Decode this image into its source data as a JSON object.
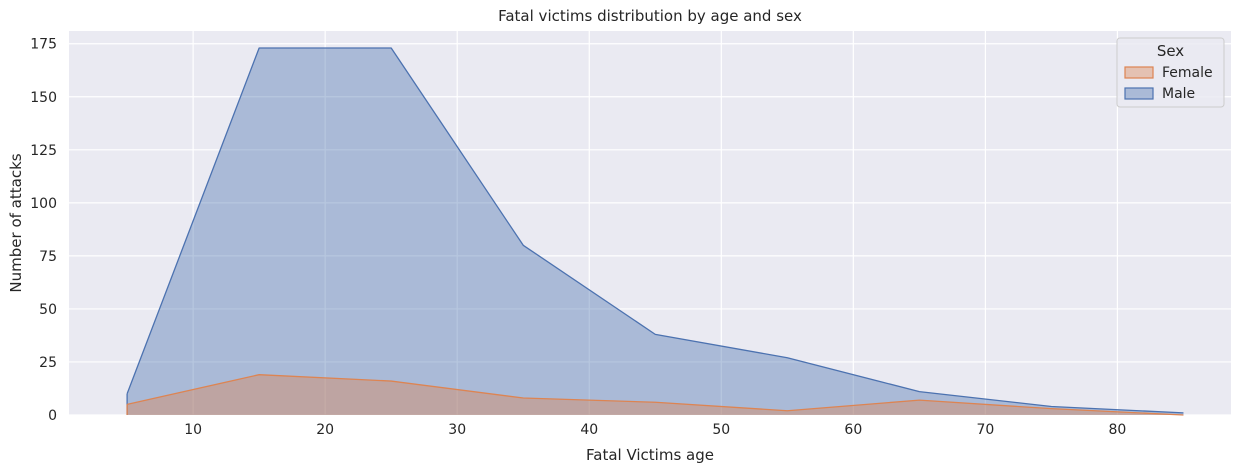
{
  "chart_data": {
    "type": "area",
    "title": "Fatal victims distribution by age and sex",
    "xlabel": "Fatal Victims age",
    "ylabel": "Number of attacks",
    "xlim": [
      0.6,
      88.6
    ],
    "ylim": [
      0,
      181
    ],
    "xticks": [
      10,
      20,
      30,
      40,
      50,
      60,
      70,
      80
    ],
    "yticks": [
      0,
      25,
      50,
      75,
      100,
      125,
      150,
      175
    ],
    "grid": true,
    "background": "#EAEAF2",
    "x": [
      5,
      15,
      25,
      35,
      45,
      55,
      65,
      75,
      85
    ],
    "series": [
      {
        "name": "Male",
        "color": "#4C72B0",
        "values": [
          10,
          173,
          173,
          80,
          38,
          27,
          11,
          4,
          1
        ]
      },
      {
        "name": "Female",
        "color": "#DD8452",
        "values": [
          5,
          19,
          16,
          8,
          6,
          2,
          7,
          3,
          0
        ]
      }
    ],
    "legend": {
      "title": "Sex",
      "position": "top-right",
      "entries": [
        {
          "name": "Female",
          "color": "#DD8452"
        },
        {
          "name": "Male",
          "color": "#4C72B0"
        }
      ]
    }
  }
}
